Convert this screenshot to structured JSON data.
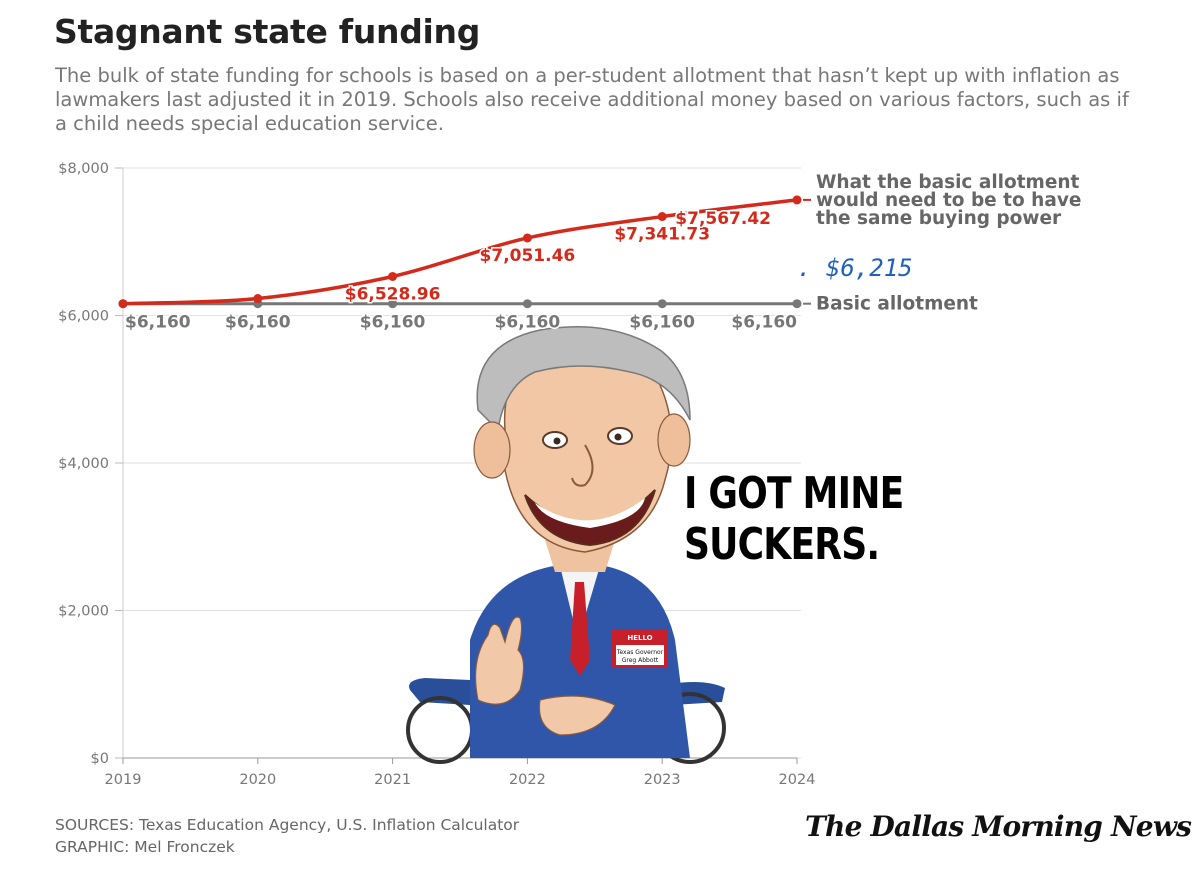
{
  "header": {
    "title": "Stagnant state funding",
    "subtitle": "The bulk of state funding for schools is based on a per-student allotment that hasn’t kept up with inflation as lawmakers last adjusted it in 2019. Schools also receive additional money based on various factors, such as if a child needs special education service."
  },
  "annotation": {
    "caption": "I GOT MINE SUCKERS.",
    "handwritten": ". $6,215",
    "name_tag": {
      "hello": "HELLO",
      "line1": "Texas Governor",
      "line2": "Greg Abbott"
    }
  },
  "footer": {
    "sources": "SOURCES: Texas Education Agency, U.S. Inflation Calculator",
    "graphic": "GRAPHIC: Mel Fronczek",
    "logo": "The Dallas Morning News"
  },
  "colors": {
    "red": "#d42a1c",
    "gray": "#777777",
    "grid": "#e2e2e2",
    "ink_blue": "#1f5fbf"
  },
  "chart_data": {
    "type": "line",
    "x": [
      2019,
      2020,
      2021,
      2022,
      2023,
      2024
    ],
    "ylim": [
      0,
      8000
    ],
    "yticks": [
      0,
      2000,
      4000,
      6000,
      8000
    ],
    "ytick_labels": [
      "$0",
      "$2,000",
      "$4,000",
      "$6,000",
      "$8,000"
    ],
    "grid": true,
    "series": [
      {
        "name": "What the basic allotment would need to be to have the same buying power",
        "label_lines": [
          "What the basic allotment",
          "would need to be to have",
          "the same buying power"
        ],
        "color": "#d42a1c",
        "values": [
          6160,
          6230,
          6528.96,
          7051.46,
          7341.73,
          7567.42
        ],
        "data_labels": [
          "",
          "",
          "$6,528.96",
          "$7,051.46",
          "$7,341.73",
          "$7,567.42"
        ]
      },
      {
        "name": "Basic allotment",
        "label_lines": [
          "Basic allotment"
        ],
        "color": "#777777",
        "values": [
          6160,
          6160,
          6160,
          6160,
          6160,
          6160
        ],
        "data_labels": [
          "$6,160",
          "$6,160",
          "$6,160",
          "$6,160",
          "$6,160",
          "$6,160"
        ]
      }
    ]
  }
}
